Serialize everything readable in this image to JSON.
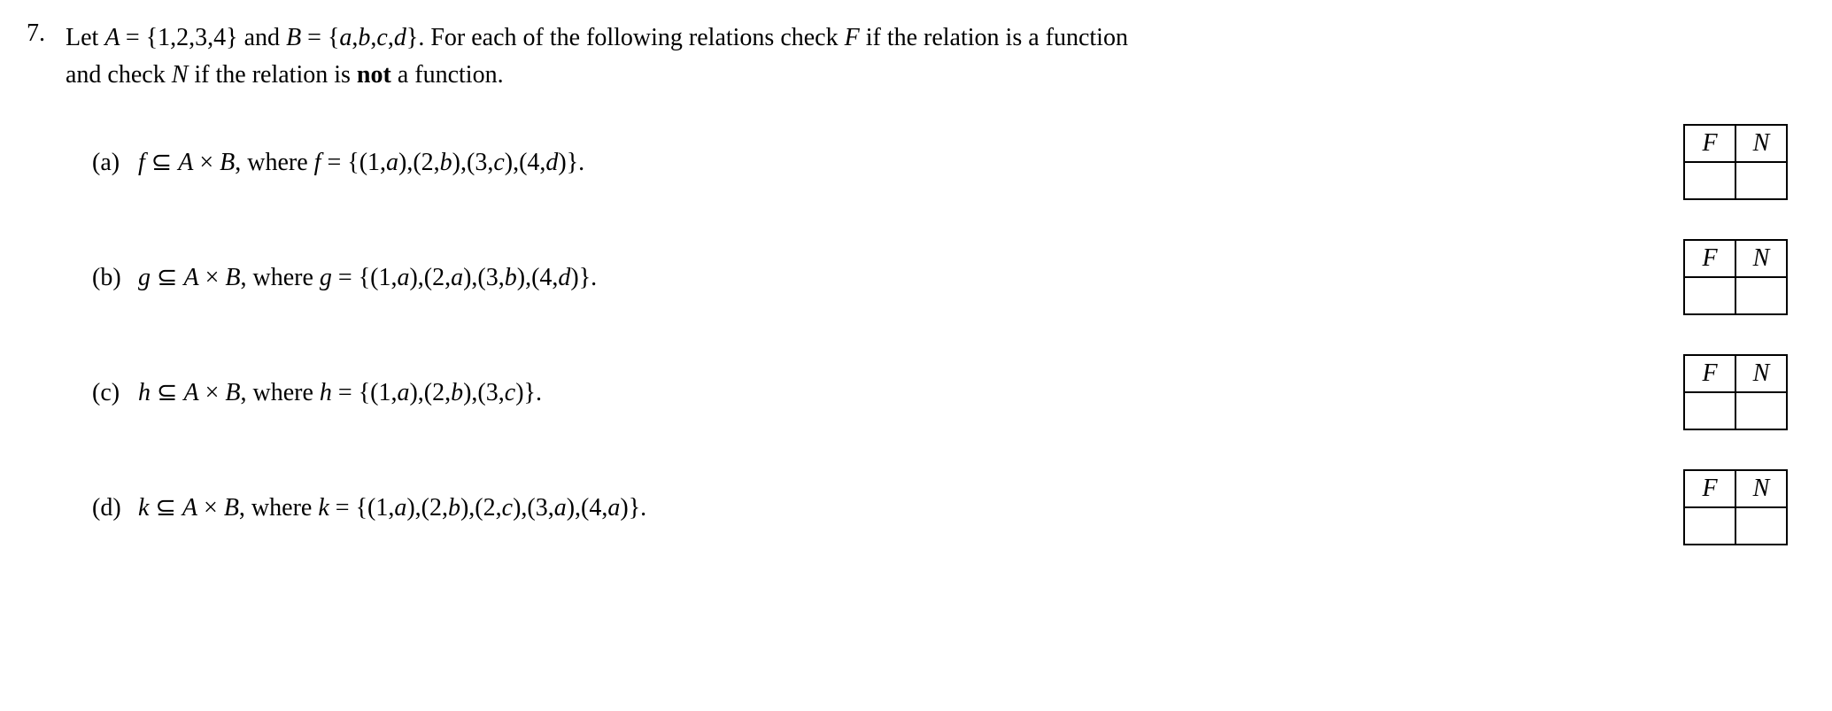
{
  "problem_number": "7.",
  "intro_line1_prefix": "Let ",
  "A_def": "A = {1,2,3,4}",
  "intro_and": " and ",
  "B_def": "B = {a,b,c,d}",
  "intro_line1_suffix": ". For each of the following relations check ",
  "F_var": "F",
  "intro_line1_end": " if the relation is a function",
  "intro_line2_prefix": "and check ",
  "N_var": "N",
  "intro_line2_mid": " if the relation is ",
  "not_word": "not",
  "intro_line2_end": " a function.",
  "subs": [
    {
      "label": "(a)",
      "fn": "f",
      "rel": "f ⊆ A × B",
      "where": ", where ",
      "def": "f = {(1,a),(2,b),(3,c),(4,d)}.",
      "F": "F",
      "N": "N"
    },
    {
      "label": "(b)",
      "fn": "g",
      "rel": "g ⊆ A × B",
      "where": ", where ",
      "def": "g = {(1,a),(2,a),(3,b),(4,d)}.",
      "F": "F",
      "N": "N"
    },
    {
      "label": "(c)",
      "fn": "h",
      "rel": "h ⊆ A × B",
      "where": ", where ",
      "def": "h = {(1,a),(2,b),(3,c)}.",
      "F": "F",
      "N": "N"
    },
    {
      "label": "(d)",
      "fn": "k",
      "rel": "k ⊆ A × B",
      "where": ", where ",
      "def": "k = {(1,a),(2,b),(2,c),(3,a),(4,a)}.",
      "F": "F",
      "N": "N"
    }
  ]
}
